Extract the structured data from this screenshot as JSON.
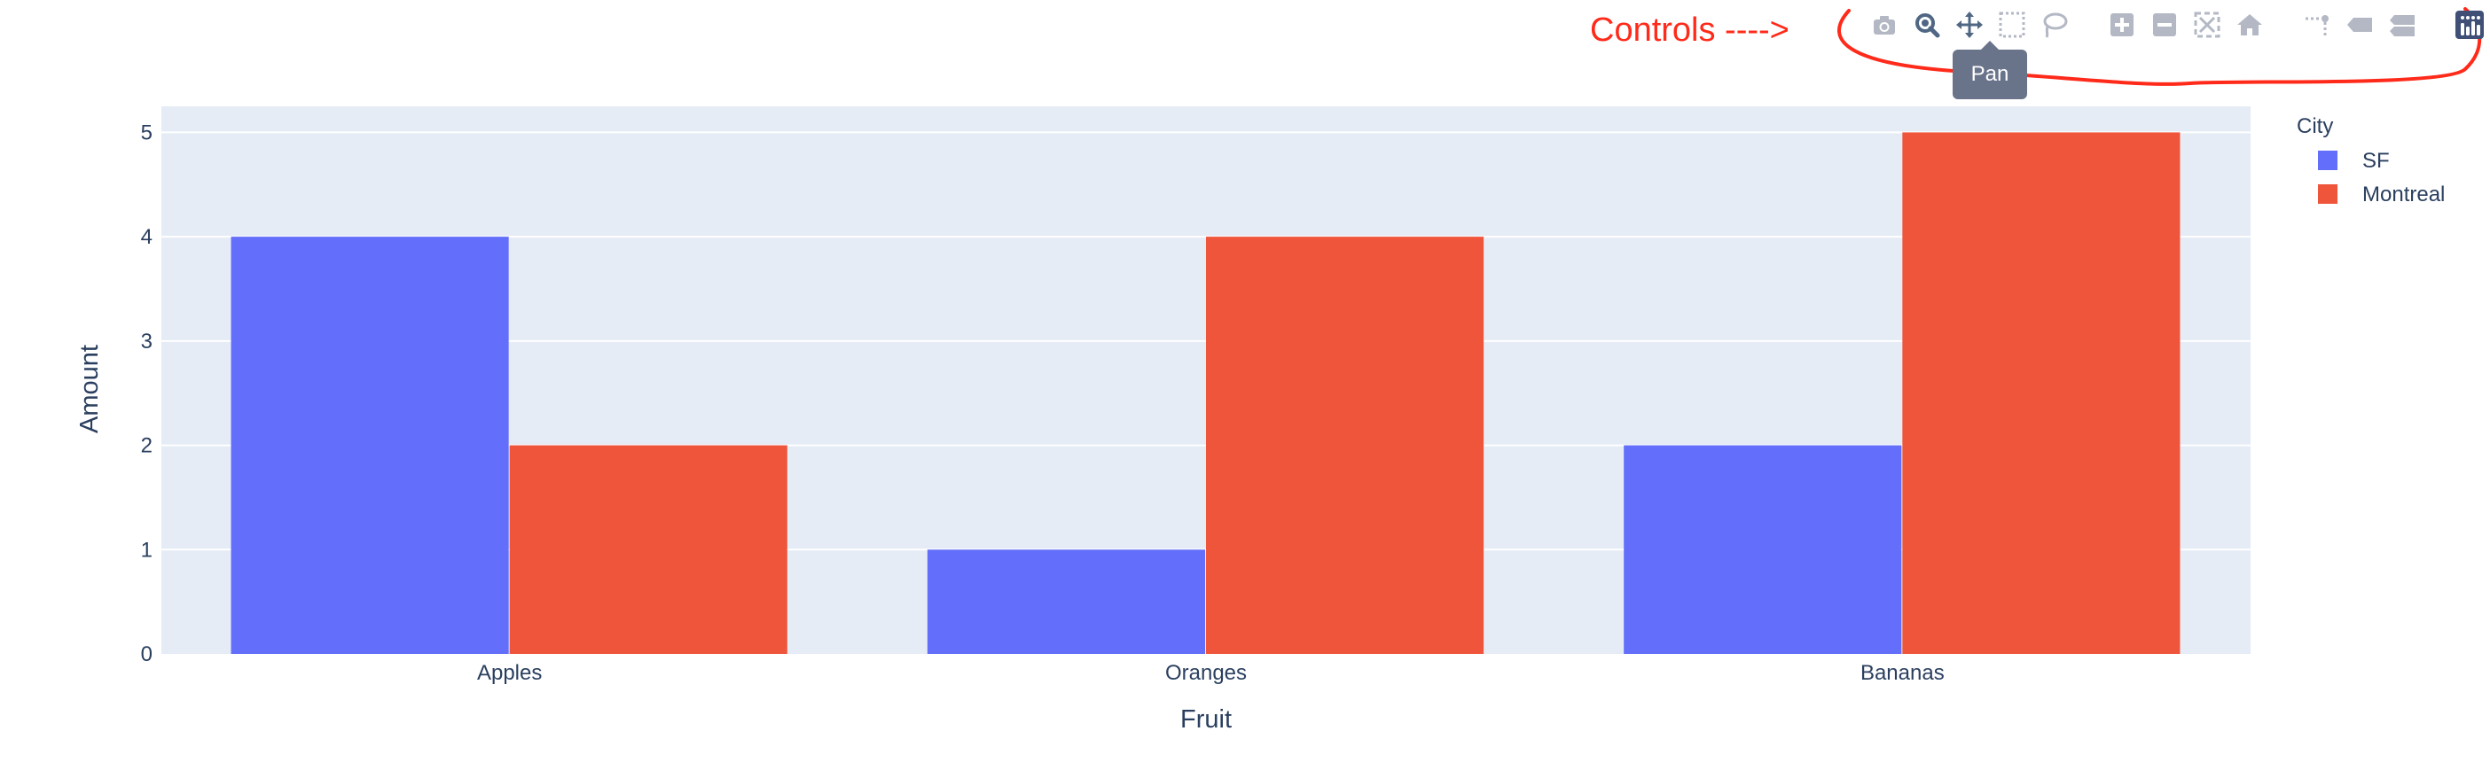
{
  "annotation": {
    "text": "Controls ---->",
    "color": "#ff2a1a"
  },
  "modebar": {
    "buttons": [
      {
        "name": "camera-icon",
        "active": false
      },
      {
        "name": "zoom-icon",
        "active": true
      },
      {
        "name": "pan-icon",
        "active": true
      },
      {
        "name": "box-select-icon",
        "active": false
      },
      {
        "name": "lasso-select-icon",
        "active": false
      },
      {
        "name": "zoom-in-icon",
        "active": false
      },
      {
        "name": "zoom-out-icon",
        "active": false
      },
      {
        "name": "autoscale-icon",
        "active": false
      },
      {
        "name": "home-icon",
        "active": false
      },
      {
        "name": "spike-lines-icon",
        "active": false
      },
      {
        "name": "hover-closest-icon",
        "active": false
      },
      {
        "name": "hover-compare-icon",
        "active": false
      },
      {
        "name": "plotly-logo-icon",
        "active": false
      }
    ],
    "tooltip": "Pan",
    "icon_color": "#b3b8c4",
    "active_color": "#506784",
    "logo_color": "#3f4f75"
  },
  "chart_data": {
    "type": "bar",
    "barmode": "group",
    "categories": [
      "Apples",
      "Oranges",
      "Bananas"
    ],
    "series": [
      {
        "name": "SF",
        "values": [
          4,
          1,
          2
        ],
        "color": "#636efa"
      },
      {
        "name": "Montreal",
        "values": [
          2,
          4,
          5
        ],
        "color": "#ef553b"
      }
    ],
    "xlabel": "Fruit",
    "ylabel": "Amount",
    "ylim": [
      0,
      5.25
    ],
    "yticks": [
      0,
      1,
      2,
      3,
      4,
      5
    ],
    "legend_title": "City",
    "legend_position": "top-right",
    "grid": true,
    "plot_bgcolor": "#e5ecf6",
    "font_color": "#2a3f5f"
  }
}
